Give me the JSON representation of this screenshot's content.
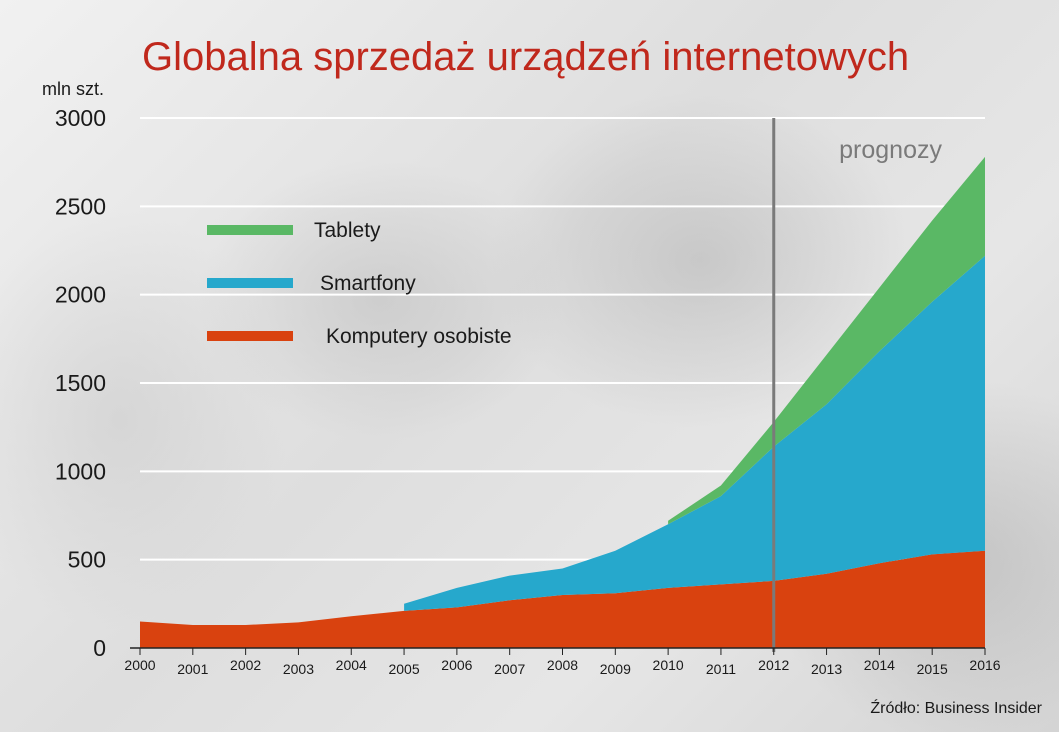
{
  "chart_data": {
    "type": "area",
    "stacked": true,
    "title": "Globalna sprzedaż urządzeń internetowych",
    "ylabel": "mln szt.",
    "ylim": [
      0,
      3000
    ],
    "yticks": [
      0,
      500,
      1000,
      1500,
      2000,
      2500,
      3000
    ],
    "grid": true,
    "legend_position": "top-left",
    "categories": [
      "2000",
      "2001",
      "2002",
      "2003",
      "2004",
      "2005",
      "2006",
      "2007",
      "2008",
      "2009",
      "2010",
      "2011",
      "2012",
      "2013",
      "2014",
      "2015",
      "2016"
    ],
    "series": [
      {
        "name": "Komputery osobiste",
        "color": "#d9420f",
        "values": [
          150,
          130,
          130,
          145,
          180,
          210,
          230,
          270,
          300,
          310,
          340,
          360,
          380,
          420,
          480,
          530,
          550
        ]
      },
      {
        "name": "Smartfony",
        "color": "#26a8cc",
        "values": [
          null,
          null,
          null,
          null,
          null,
          40,
          110,
          140,
          150,
          240,
          360,
          500,
          760,
          960,
          1200,
          1430,
          1670
        ]
      },
      {
        "name": "Tablety",
        "color": "#5ab865",
        "values": [
          null,
          null,
          null,
          null,
          null,
          null,
          null,
          null,
          null,
          null,
          20,
          60,
          140,
          280,
          360,
          460,
          560
        ]
      }
    ],
    "annotations": [
      {
        "text": "prognozy",
        "x": "2012",
        "type": "vertical-line"
      }
    ],
    "source": "Źródło: Business Insider"
  }
}
